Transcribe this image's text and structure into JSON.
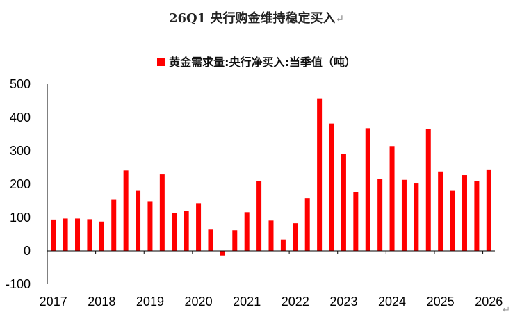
{
  "title": "26Q1 央行购金维持稳定买入",
  "title_mark": "↵",
  "corner_mark": "↵",
  "chart_data": {
    "type": "bar",
    "series": [
      {
        "name": "黄金需求量:央行净买入:当季值（吨）",
        "color": "#ff0000",
        "values": [
          94,
          97,
          97,
          95,
          88,
          153,
          241,
          180,
          147,
          229,
          114,
          120,
          143,
          64,
          -14,
          62,
          116,
          210,
          91,
          34,
          83,
          158,
          457,
          382,
          291,
          177,
          368,
          216,
          314,
          213,
          202,
          366,
          238,
          180,
          227,
          209,
          244
        ]
      }
    ],
    "quarters": [
      "2017Q1",
      "2017Q2",
      "2017Q3",
      "2017Q4",
      "2018Q1",
      "2018Q2",
      "2018Q3",
      "2018Q4",
      "2019Q1",
      "2019Q2",
      "2019Q3",
      "2019Q4",
      "2020Q1",
      "2020Q2",
      "2020Q3",
      "2020Q4",
      "2021Q1",
      "2021Q2",
      "2021Q3",
      "2021Q4",
      "2022Q1",
      "2022Q2",
      "2022Q3",
      "2022Q4",
      "2023Q1",
      "2023Q2",
      "2023Q3",
      "2023Q4",
      "2024Q1",
      "2024Q2",
      "2024Q3",
      "2024Q4",
      "2025Q1",
      "2025Q2",
      "2025Q3",
      "2025Q4",
      "2026Q1"
    ],
    "x_tick_labels": [
      "2017",
      "2018",
      "2019",
      "2020",
      "2021",
      "2022",
      "2023",
      "2024",
      "2025",
      "2026"
    ],
    "y_ticks": [
      -100,
      0,
      100,
      200,
      300,
      400,
      500
    ],
    "ylim": [
      -100,
      500
    ],
    "xlabel": "",
    "ylabel": "",
    "grid": false,
    "legend_position": "top-center"
  }
}
